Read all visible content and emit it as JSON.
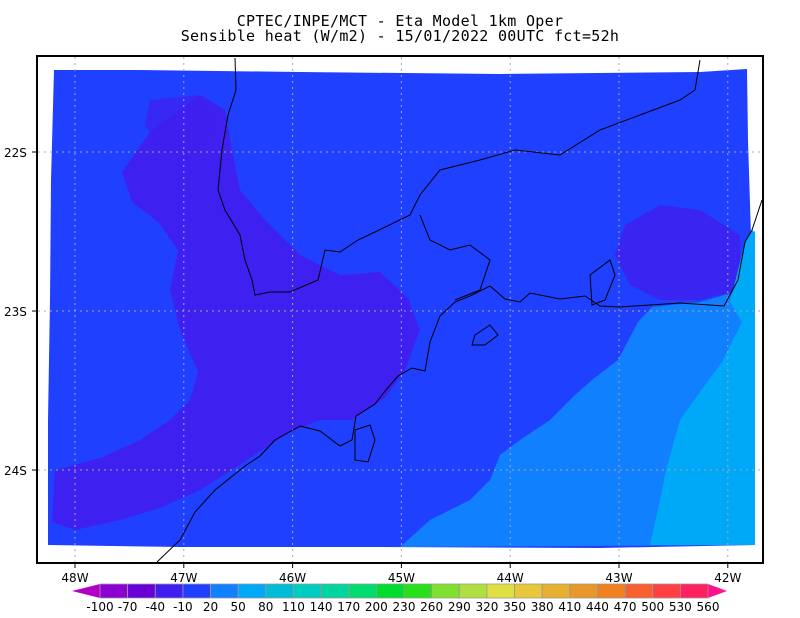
{
  "title": {
    "line1": "CPTEC/INPE/MCT -  Eta Model 1km Oper",
    "line2": "Sensible heat (W/m2) - 15/01/2022 00UTC fct=52h"
  },
  "map": {
    "longitude_labels": [
      "48W",
      "47W",
      "46W",
      "45W",
      "44W",
      "43W",
      "42W"
    ],
    "latitude_labels": [
      "22S",
      "23S",
      "24S"
    ],
    "grid": "dotted",
    "field_colors": {
      "land_dominant": "#4020f0",
      "base": "#2040ff",
      "ocean_near": "#1080ff",
      "ocean_far": "#00a8f8"
    }
  },
  "colorbar": {
    "labels": [
      "-100",
      "-70",
      "-40",
      "-10",
      "20",
      "50",
      "80",
      "110",
      "140",
      "170",
      "200",
      "230",
      "260",
      "290",
      "320",
      "350",
      "380",
      "410",
      "440",
      "470",
      "500",
      "530",
      "560"
    ],
    "low_extend_color": "#b000c8",
    "high_extend_color": "#ff1090",
    "colors": [
      "#8c00d0",
      "#6a00d8",
      "#4020f0",
      "#2040ff",
      "#1080ff",
      "#00a8f8",
      "#00bcd8",
      "#00ccc0",
      "#00d4a0",
      "#00dc70",
      "#00dc30",
      "#28e018",
      "#80e030",
      "#b0e040",
      "#e0e040",
      "#e8c838",
      "#e8b030",
      "#e89828",
      "#f08020",
      "#f86030",
      "#ff4040",
      "#ff2060"
    ]
  }
}
